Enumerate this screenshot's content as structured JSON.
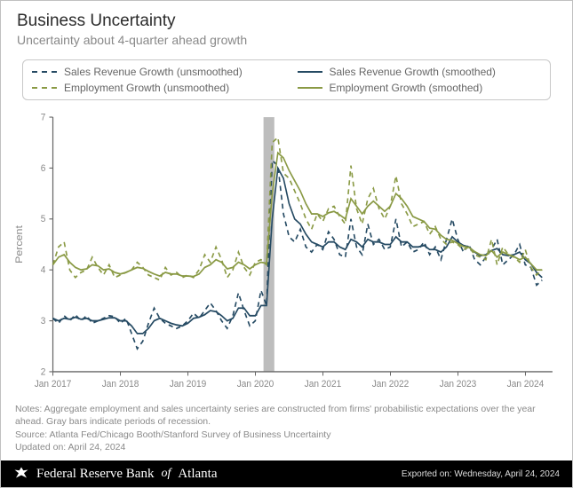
{
  "header": {
    "title": "Business Uncertainty",
    "subtitle": "Uncertainty about 4-quarter ahead growth"
  },
  "legend": {
    "items": [
      {
        "label": "Sales Revenue Growth (unsmoothed)",
        "color": "#254a63",
        "dashed": true
      },
      {
        "label": "Sales Revenue Growth (smoothed)",
        "color": "#254a63",
        "dashed": false
      },
      {
        "label": "Employment Growth (unsmoothed)",
        "color": "#8a9a45",
        "dashed": true
      },
      {
        "label": "Employment Growth (smoothed)",
        "color": "#8a9a45",
        "dashed": false
      }
    ]
  },
  "chart": {
    "type": "line",
    "ylabel": "Percent",
    "ylim": [
      2,
      7
    ],
    "yticks": [
      2,
      3,
      4,
      5,
      6,
      7
    ],
    "xlim": [
      2017.0,
      2024.4
    ],
    "xticks": [
      {
        "v": 2017.0,
        "label": "Jan 2017"
      },
      {
        "v": 2018.0,
        "label": "Jan 2018"
      },
      {
        "v": 2019.0,
        "label": "Jan 2019"
      },
      {
        "v": 2020.0,
        "label": "Jan 2020"
      },
      {
        "v": 2021.0,
        "label": "Jan 2021"
      },
      {
        "v": 2022.0,
        "label": "Jan 2022"
      },
      {
        "v": 2023.0,
        "label": "Jan 2023"
      },
      {
        "v": 2024.0,
        "label": "Jan 2024"
      }
    ],
    "recession_band": {
      "start": 2020.12,
      "end": 2020.28,
      "color": "#bdbdbd"
    },
    "background_color": "#ffffff",
    "axis_color": "#666666",
    "grid_color": "#e8e8e8",
    "stroke_width": 1.6,
    "x_step": 0.0833,
    "series": [
      {
        "id": "sales_unsmoothed",
        "color": "#254a63",
        "dashed": true,
        "y": [
          3.05,
          2.95,
          3.1,
          3.0,
          3.12,
          3.0,
          3.1,
          2.95,
          3.0,
          3.05,
          3.1,
          3.08,
          2.95,
          3.05,
          2.75,
          2.45,
          2.6,
          2.95,
          3.25,
          3.05,
          2.95,
          2.9,
          2.85,
          2.9,
          3.0,
          3.15,
          3.05,
          3.2,
          3.35,
          3.2,
          3.0,
          2.85,
          3.1,
          3.55,
          3.2,
          2.9,
          3.0,
          3.6,
          3.3,
          6.15,
          6.05,
          5.1,
          4.65,
          4.55,
          4.8,
          4.45,
          4.35,
          4.5,
          4.4,
          4.75,
          4.6,
          4.3,
          4.25,
          5.0,
          4.45,
          4.3,
          4.9,
          4.5,
          4.6,
          4.4,
          4.45,
          5.0,
          4.45,
          4.55,
          4.35,
          4.4,
          4.55,
          4.3,
          4.45,
          4.2,
          4.6,
          5.0,
          4.6,
          4.35,
          4.5,
          4.2,
          4.1,
          4.25,
          4.4,
          4.6,
          4.1,
          4.2,
          4.3,
          4.5,
          4.1,
          4.05,
          3.7,
          3.8
        ]
      },
      {
        "id": "sales_smoothed",
        "color": "#254a63",
        "dashed": false,
        "y": [
          3.05,
          3.0,
          3.05,
          3.03,
          3.07,
          3.03,
          3.05,
          3.0,
          3.0,
          3.03,
          3.06,
          3.06,
          3.0,
          3.0,
          2.9,
          2.75,
          2.75,
          2.85,
          3.0,
          3.05,
          3.0,
          2.95,
          2.92,
          2.9,
          2.95,
          3.05,
          3.07,
          3.12,
          3.2,
          3.18,
          3.1,
          3.0,
          3.05,
          3.25,
          3.25,
          3.1,
          3.1,
          3.3,
          3.3,
          5.0,
          6.0,
          5.8,
          5.3,
          5.0,
          4.9,
          4.7,
          4.55,
          4.5,
          4.45,
          4.55,
          4.55,
          4.45,
          4.4,
          4.6,
          4.55,
          4.45,
          4.6,
          4.55,
          4.55,
          4.5,
          4.5,
          4.65,
          4.55,
          4.55,
          4.45,
          4.45,
          4.48,
          4.4,
          4.4,
          4.35,
          4.45,
          4.65,
          4.55,
          4.48,
          4.45,
          4.35,
          4.28,
          4.3,
          4.38,
          4.42,
          4.3,
          4.28,
          4.3,
          4.35,
          4.2,
          4.12,
          3.95,
          3.85
        ]
      },
      {
        "id": "emp_unsmoothed",
        "color": "#8a9a45",
        "dashed": true,
        "y": [
          4.1,
          4.45,
          4.55,
          4.0,
          3.85,
          3.95,
          4.0,
          4.25,
          4.05,
          3.9,
          4.1,
          3.85,
          3.9,
          3.95,
          4.0,
          4.15,
          4.05,
          3.9,
          3.85,
          3.8,
          4.05,
          3.9,
          3.95,
          3.85,
          3.9,
          3.85,
          4.0,
          4.3,
          4.15,
          4.45,
          4.2,
          3.85,
          4.0,
          4.35,
          4.05,
          3.9,
          4.15,
          4.2,
          4.1,
          6.5,
          6.6,
          5.9,
          5.8,
          5.55,
          5.3,
          5.0,
          4.8,
          5.1,
          4.95,
          5.2,
          5.25,
          5.05,
          4.9,
          6.05,
          5.2,
          4.9,
          5.4,
          5.6,
          5.2,
          5.0,
          5.25,
          5.85,
          5.3,
          5.1,
          4.85,
          4.9,
          4.95,
          4.7,
          4.85,
          4.6,
          4.5,
          4.55,
          4.5,
          4.4,
          4.45,
          4.3,
          4.25,
          4.2,
          4.6,
          4.1,
          4.45,
          4.3,
          4.25,
          4.15,
          4.4,
          4.05,
          3.9,
          4.0
        ]
      },
      {
        "id": "emp_smoothed",
        "color": "#8a9a45",
        "dashed": false,
        "y": [
          4.1,
          4.25,
          4.3,
          4.15,
          4.05,
          4.0,
          4.02,
          4.1,
          4.08,
          4.0,
          4.02,
          3.95,
          3.92,
          3.95,
          4.0,
          4.05,
          4.03,
          3.97,
          3.92,
          3.88,
          3.95,
          3.92,
          3.92,
          3.88,
          3.88,
          3.87,
          3.92,
          4.05,
          4.1,
          4.2,
          4.15,
          4.02,
          4.05,
          4.15,
          4.1,
          4.02,
          4.1,
          4.15,
          4.13,
          5.5,
          6.3,
          6.2,
          5.95,
          5.75,
          5.55,
          5.3,
          5.1,
          5.1,
          5.05,
          5.12,
          5.15,
          5.08,
          5.0,
          5.4,
          5.25,
          5.1,
          5.25,
          5.35,
          5.25,
          5.15,
          5.25,
          5.5,
          5.4,
          5.25,
          5.05,
          5.0,
          4.95,
          4.82,
          4.8,
          4.68,
          4.6,
          4.58,
          4.52,
          4.46,
          4.44,
          4.36,
          4.3,
          4.28,
          4.38,
          4.25,
          4.35,
          4.3,
          4.26,
          4.2,
          4.25,
          4.12,
          4.0,
          4.0
        ]
      }
    ]
  },
  "notes": {
    "line1": "Notes: Aggregate employment and sales uncertainty series are constructed from firms' probabilistic expectations over the year ahead. Gray bars indicate periods of recession.",
    "line2": "Source: Atlanta Fed/Chicago Booth/Stanford Survey of Business Uncertainty",
    "line3": "Updated on: April 24, 2024"
  },
  "footer": {
    "brand_prefix": "Federal Reserve Bank",
    "brand_of": "of",
    "brand_suffix": "Atlanta",
    "export": "Exported on: Wednesday, April 24, 2024"
  }
}
